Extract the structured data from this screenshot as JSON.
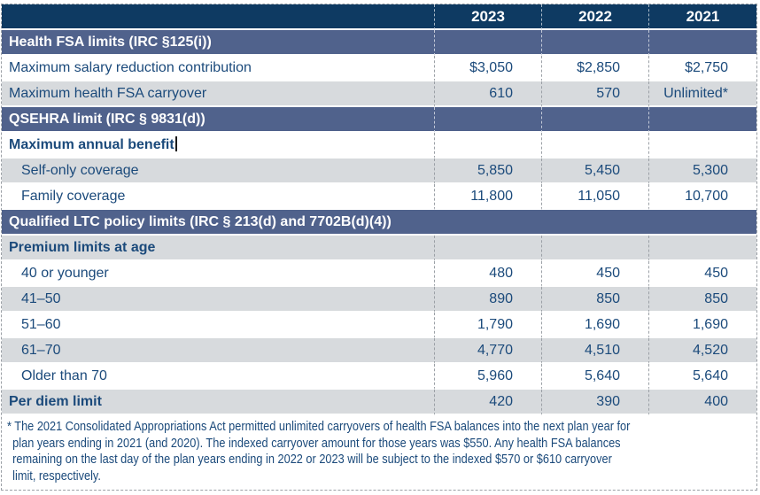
{
  "colors": {
    "header_bg": "#0E3A62",
    "section_bg": "#50628C",
    "row_alt_bg": "#D7DADD",
    "body_text": "#1B4A7B",
    "header_text": "#FFFFFF",
    "grid_line": "#9BA0A6"
  },
  "table": {
    "rows": [
      {
        "type": "year-header",
        "cells": [
          "",
          "2023",
          "2022",
          "2021"
        ]
      },
      {
        "type": "section",
        "merged": false,
        "label": "Health FSA limits (IRC §125(i))"
      },
      {
        "type": "data",
        "shade": "white",
        "indent": false,
        "bold": false,
        "label": "Maximum salary reduction contribution",
        "values": [
          "$3,050",
          "$2,850",
          "$2,750"
        ]
      },
      {
        "type": "data",
        "shade": "gray",
        "indent": false,
        "bold": false,
        "label": "Maximum health FSA carryover",
        "values": [
          "610",
          "570",
          "Unlimited*"
        ]
      },
      {
        "type": "section",
        "merged": false,
        "label": "QSEHRA limit (IRC § 9831(d))"
      },
      {
        "type": "data",
        "shade": "white",
        "indent": false,
        "bold": true,
        "cursor": true,
        "label": "Maximum annual benefit",
        "values": [
          "",
          "",
          ""
        ]
      },
      {
        "type": "data",
        "shade": "gray",
        "indent": true,
        "bold": false,
        "label": "Self-only coverage",
        "values": [
          "5,850",
          "5,450",
          "5,300"
        ]
      },
      {
        "type": "data",
        "shade": "white",
        "indent": true,
        "bold": false,
        "label": "Family coverage",
        "values": [
          "11,800",
          "11,050",
          "10,700"
        ]
      },
      {
        "type": "section",
        "merged": true,
        "label": "Qualified LTC policy limits (IRC § 213(d) and 7702B(d)(4))"
      },
      {
        "type": "data",
        "shade": "gray",
        "indent": false,
        "bold": true,
        "label": "Premium limits at age",
        "values": [
          "",
          "",
          ""
        ]
      },
      {
        "type": "data",
        "shade": "white",
        "indent": true,
        "bold": false,
        "label": "40 or younger",
        "values": [
          "480",
          "450",
          "450"
        ]
      },
      {
        "type": "data",
        "shade": "gray",
        "indent": true,
        "bold": false,
        "label": "41–50",
        "values": [
          "890",
          "850",
          "850"
        ]
      },
      {
        "type": "data",
        "shade": "white",
        "indent": true,
        "bold": false,
        "label": "51–60",
        "values": [
          "1,790",
          "1,690",
          "1,690"
        ]
      },
      {
        "type": "data",
        "shade": "gray",
        "indent": true,
        "bold": false,
        "label": "61–70",
        "values": [
          "4,770",
          "4,510",
          "4,520"
        ]
      },
      {
        "type": "data",
        "shade": "white",
        "indent": true,
        "bold": false,
        "label": "Older than 70",
        "values": [
          "5,960",
          "5,640",
          "5,640"
        ]
      },
      {
        "type": "data",
        "shade": "gray",
        "indent": false,
        "bold": true,
        "label": "Per diem limit",
        "values": [
          "420",
          "390",
          "400"
        ]
      }
    ]
  },
  "footnote_lines": [
    "* The 2021 Consolidated Appropriations Act permitted unlimited carryovers of health FSA balances into the next plan year for",
    "plan years ending in 2021 (and 2020). The indexed carryover amount for those years was $550. Any health FSA balances",
    "remaining on the last day of the plan years ending in 2022 or 2023 will be subject to the indexed $570 or $610 carryover",
    "limit, respectively."
  ]
}
